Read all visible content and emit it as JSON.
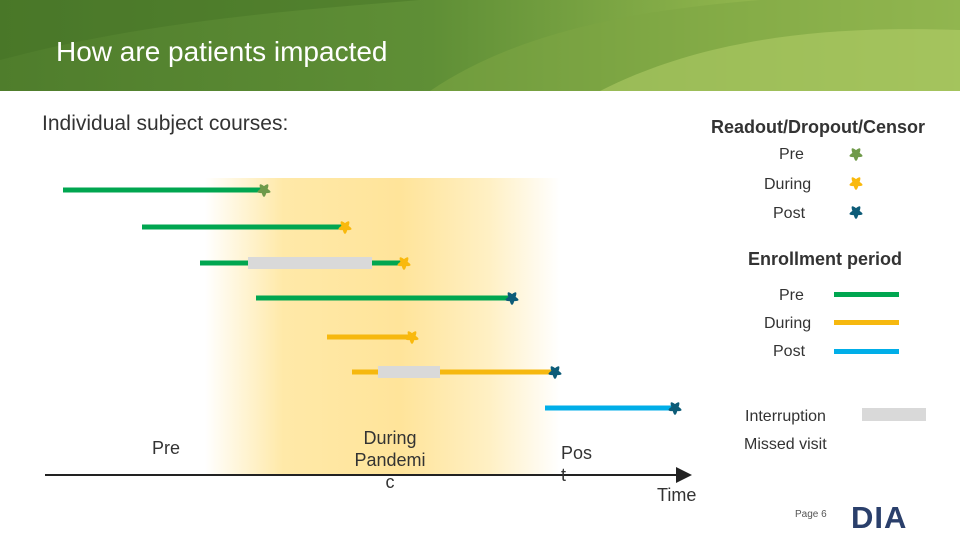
{
  "header": {
    "title": "How are patients impacted"
  },
  "subtitle": "Individual subject courses:",
  "colors": {
    "pre": "#00a650",
    "during": "#f6b80f",
    "post": "#00aee8",
    "interruption": "#d9d9d9",
    "star_pre": "#6f9a4a",
    "star_during": "#f9b90d",
    "star_post": "#0d5c78"
  },
  "legend": {
    "readout_title": "Readout/Dropout/Censor",
    "readout_items": [
      {
        "label": "Pre",
        "icon": "flower-star-icon",
        "period": "pre"
      },
      {
        "label": "During",
        "icon": "flower-star-icon",
        "period": "during"
      },
      {
        "label": "Post",
        "icon": "flower-star-icon",
        "period": "post"
      }
    ],
    "enrollment_title": "Enrollment period",
    "enrollment_items": [
      {
        "label": "Pre",
        "period": "pre"
      },
      {
        "label": "During",
        "period": "during"
      },
      {
        "label": "Post",
        "period": "post"
      }
    ],
    "interruption_label": "Interruption",
    "missed_visit_label": "Missed visit"
  },
  "timeline": {
    "axis_label": "Time",
    "period_labels": {
      "pre": "Pre",
      "during": "During\nPandemi\nc",
      "post": "Pos\nt"
    },
    "subjects": [
      {
        "enroll": "pre",
        "readout": "pre",
        "interruption": false
      },
      {
        "enroll": "pre",
        "readout": "during",
        "interruption": false
      },
      {
        "enroll": "pre",
        "readout": "during",
        "interruption": true
      },
      {
        "enroll": "pre",
        "readout": "post",
        "interruption": false
      },
      {
        "enroll": "during",
        "readout": "during",
        "interruption": false
      },
      {
        "enroll": "during",
        "readout": "post",
        "interruption": true
      },
      {
        "enroll": "post",
        "readout": "post",
        "interruption": false
      }
    ]
  },
  "footer": {
    "page": "Page 6",
    "logo_text": "DIA"
  }
}
